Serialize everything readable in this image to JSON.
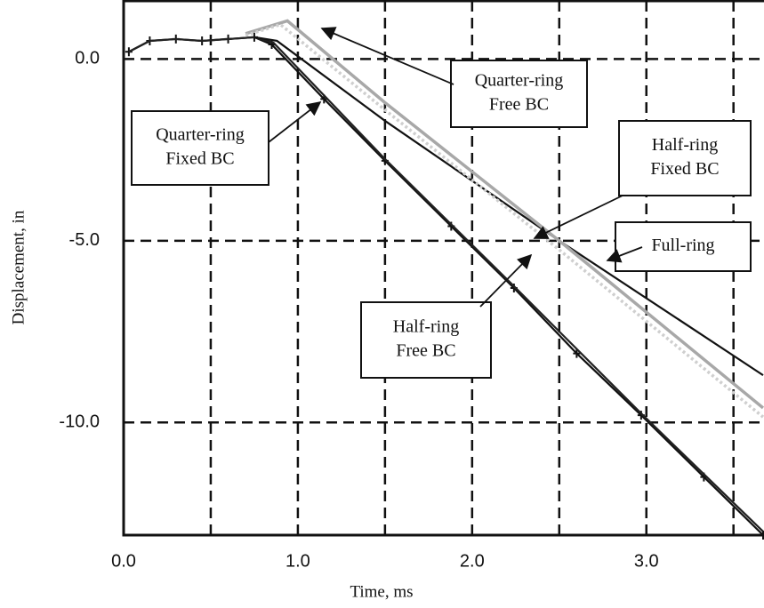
{
  "chart_data": {
    "type": "line",
    "xlabel": "Time, ms",
    "ylabel": "Displacement, in",
    "xlim": [
      0,
      3.67
    ],
    "ylim": [
      -13.1,
      1.6
    ],
    "xticks": [
      {
        "value": 0,
        "label": "0.0"
      },
      {
        "value": 1,
        "label": "1.0"
      },
      {
        "value": 2,
        "label": "2.0"
      },
      {
        "value": 3,
        "label": "3.0"
      }
    ],
    "xminor": [
      0.5,
      1.5,
      2.5,
      3.5
    ],
    "yticks": [
      {
        "value": 0,
        "label": "0.0"
      },
      {
        "value": -5,
        "label": "-5.0"
      },
      {
        "value": -10,
        "label": "-10.0"
      }
    ],
    "grid": true,
    "series": [
      {
        "name": "Quarter-ring Fixed BC",
        "color": "#111111",
        "markers": true,
        "x": [
          0.03,
          0.15,
          0.3,
          0.45,
          0.6,
          0.75,
          0.85,
          1.15,
          1.5,
          1.88,
          2.24,
          2.6,
          2.97,
          3.33,
          3.67
        ],
        "values": [
          0.2,
          0.5,
          0.55,
          0.5,
          0.55,
          0.6,
          0.4,
          -1.1,
          -2.8,
          -4.6,
          -6.3,
          -8.1,
          -9.8,
          -11.5,
          -13.1
        ]
      },
      {
        "name": "Half-ring Free BC",
        "color": "#222222",
        "markers": false,
        "x": [
          0.03,
          0.15,
          0.3,
          0.45,
          0.6,
          0.75,
          0.86,
          1.5,
          2.24,
          2.97,
          3.67
        ],
        "values": [
          0.2,
          0.5,
          0.55,
          0.5,
          0.55,
          0.6,
          0.45,
          -2.75,
          -6.25,
          -9.75,
          -13.0
        ]
      },
      {
        "name": "Half-ring Fixed BC",
        "color": "#111111",
        "markers": false,
        "x": [
          0.75,
          0.88,
          1.5,
          2.5,
          3.67
        ],
        "values": [
          0.6,
          0.5,
          -1.7,
          -5.0,
          -8.7
        ]
      },
      {
        "name": "Quarter-ring Free BC",
        "color": "#a8a8a8",
        "markers": false,
        "x": [
          0.7,
          0.94,
          1.5,
          2.5,
          3.67
        ],
        "values": [
          0.7,
          1.05,
          -1.2,
          -5.0,
          -9.6
        ]
      },
      {
        "name": "Full-ring",
        "color": "#cfcfcf",
        "markers": false,
        "x": [
          0.7,
          0.9,
          1.5,
          2.5,
          3.67
        ],
        "values": [
          0.65,
          0.95,
          -1.4,
          -5.25,
          -9.85
        ]
      }
    ],
    "annotations": [
      {
        "lines": [
          "Quarter-ring",
          "Free BC"
        ]
      },
      {
        "lines": [
          "Quarter-ring",
          "Fixed BC"
        ]
      },
      {
        "lines": [
          "Half-ring",
          "Fixed BC"
        ]
      },
      {
        "lines": [
          "Full-ring"
        ]
      },
      {
        "lines": [
          "Half-ring",
          "Free BC"
        ]
      }
    ]
  }
}
